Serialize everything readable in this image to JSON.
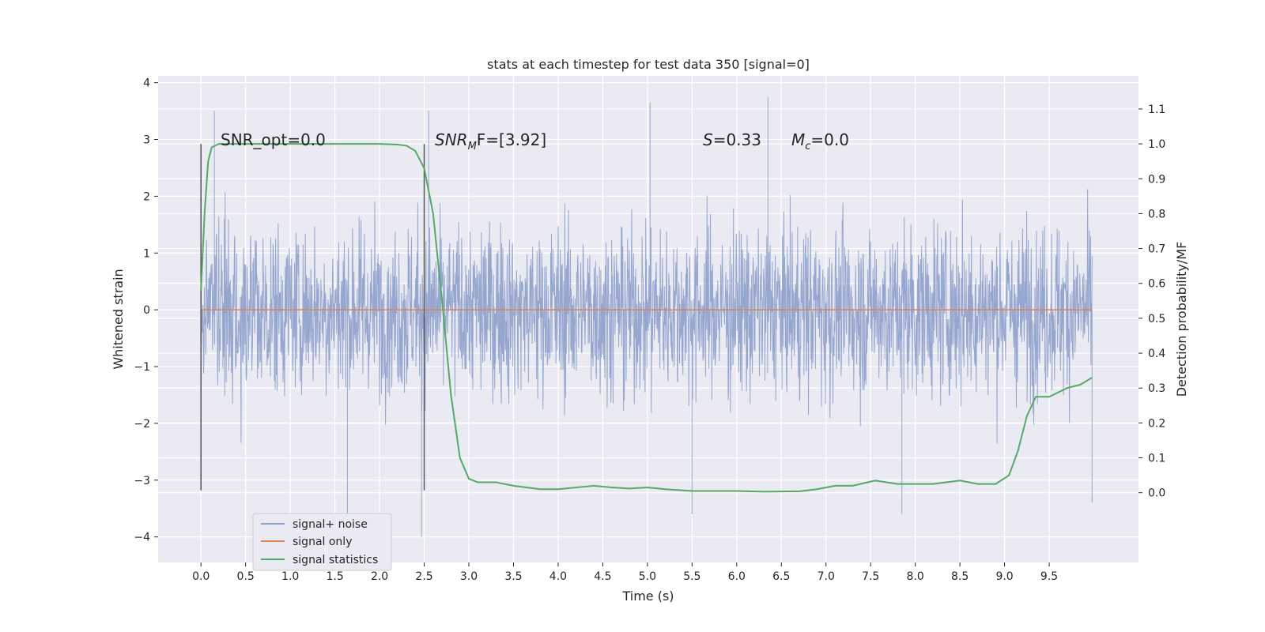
{
  "chart_data": {
    "type": "line",
    "title": "stats at each timestep for test data 350 [signal=0]",
    "xlabel": "Time (s)",
    "ylabel": "Whitened strain",
    "ylabel_right": "Detection probability/MF",
    "xlim": [
      -0.48,
      10.5
    ],
    "ylim": [
      -4.45,
      4.12
    ],
    "ylim_right": [
      -0.2,
      1.195
    ],
    "x_ticks": [
      "0.0",
      "0.5",
      "1.0",
      "1.5",
      "2.0",
      "2.5",
      "3.0",
      "3.5",
      "4.0",
      "4.5",
      "5.0",
      "5.5",
      "6.0",
      "6.5",
      "7.0",
      "7.5",
      "8.0",
      "8.5",
      "9.0",
      "9.5"
    ],
    "y_ticks": [
      "−4",
      "−3",
      "−2",
      "−1",
      "0",
      "1",
      "2",
      "3",
      "4"
    ],
    "y_ticks_right": [
      "0.0",
      "0.1",
      "0.2",
      "0.3",
      "0.4",
      "0.5",
      "0.6",
      "0.7",
      "0.8",
      "0.9",
      "1.0",
      "1.1"
    ],
    "grid": true,
    "legend_position": "lower-left",
    "vlines_x": [
      0.0,
      2.5
    ],
    "annotations": {
      "snr_opt": "SNR_opt=0.0",
      "snr_mf_main": "SNR",
      "snr_mf_sub": "M",
      "snr_mf_rest": "F=[3.92]",
      "s_main": "S",
      "s_rest": "=0.33",
      "mc_main": "M",
      "mc_sub": "c",
      "mc_rest": "=0.0"
    },
    "colors": {
      "noise": "#8c9fcb",
      "signal": "#dd8452",
      "stats": "#55a868",
      "background": "#eaeaf2",
      "vline": "#555555"
    },
    "series": [
      {
        "name": "signal+ noise",
        "description_values": "whitened noise, roughly Gaussian, range about -4 to 3.8",
        "time_range": [
          0.0,
          9.98
        ],
        "spikes": [
          {
            "x": 0.15,
            "y": 3.5
          },
          {
            "x": 1.64,
            "y": -3.6
          },
          {
            "x": 2.47,
            "y": -4.0
          },
          {
            "x": 2.55,
            "y": 3.5
          },
          {
            "x": 5.03,
            "y": 3.65
          },
          {
            "x": 6.35,
            "y": 3.75
          },
          {
            "x": 7.85,
            "y": -3.6
          },
          {
            "x": 5.5,
            "y": -3.6
          },
          {
            "x": 9.98,
            "y": -3.4
          }
        ]
      },
      {
        "name": "signal only",
        "x": [
          0.0,
          9.98
        ],
        "y": [
          0.0,
          0.0
        ]
      },
      {
        "name": "signal statistics",
        "axis": "right",
        "x": [
          0.0,
          0.04,
          0.08,
          0.12,
          0.2,
          0.4,
          1.0,
          1.5,
          2.0,
          2.2,
          2.3,
          2.4,
          2.5,
          2.6,
          2.7,
          2.8,
          2.9,
          3.0,
          3.1,
          3.3,
          3.5,
          3.8,
          4.0,
          4.2,
          4.4,
          4.6,
          4.8,
          5.0,
          5.2,
          5.5,
          6.0,
          6.3,
          6.7,
          6.9,
          7.1,
          7.3,
          7.55,
          7.8,
          8.0,
          8.2,
          8.5,
          8.7,
          8.9,
          9.05,
          9.15,
          9.25,
          9.35,
          9.5,
          9.7,
          9.85,
          9.98
        ],
        "y": [
          0.58,
          0.8,
          0.95,
          0.99,
          1.0,
          1.0,
          1.0,
          1.0,
          1.0,
          0.998,
          0.995,
          0.98,
          0.93,
          0.8,
          0.55,
          0.28,
          0.1,
          0.04,
          0.03,
          0.03,
          0.02,
          0.01,
          0.01,
          0.015,
          0.02,
          0.015,
          0.012,
          0.015,
          0.01,
          0.005,
          0.005,
          0.003,
          0.004,
          0.01,
          0.02,
          0.02,
          0.035,
          0.025,
          0.025,
          0.025,
          0.035,
          0.025,
          0.025,
          0.05,
          0.12,
          0.22,
          0.275,
          0.275,
          0.3,
          0.31,
          0.33
        ]
      }
    ]
  }
}
